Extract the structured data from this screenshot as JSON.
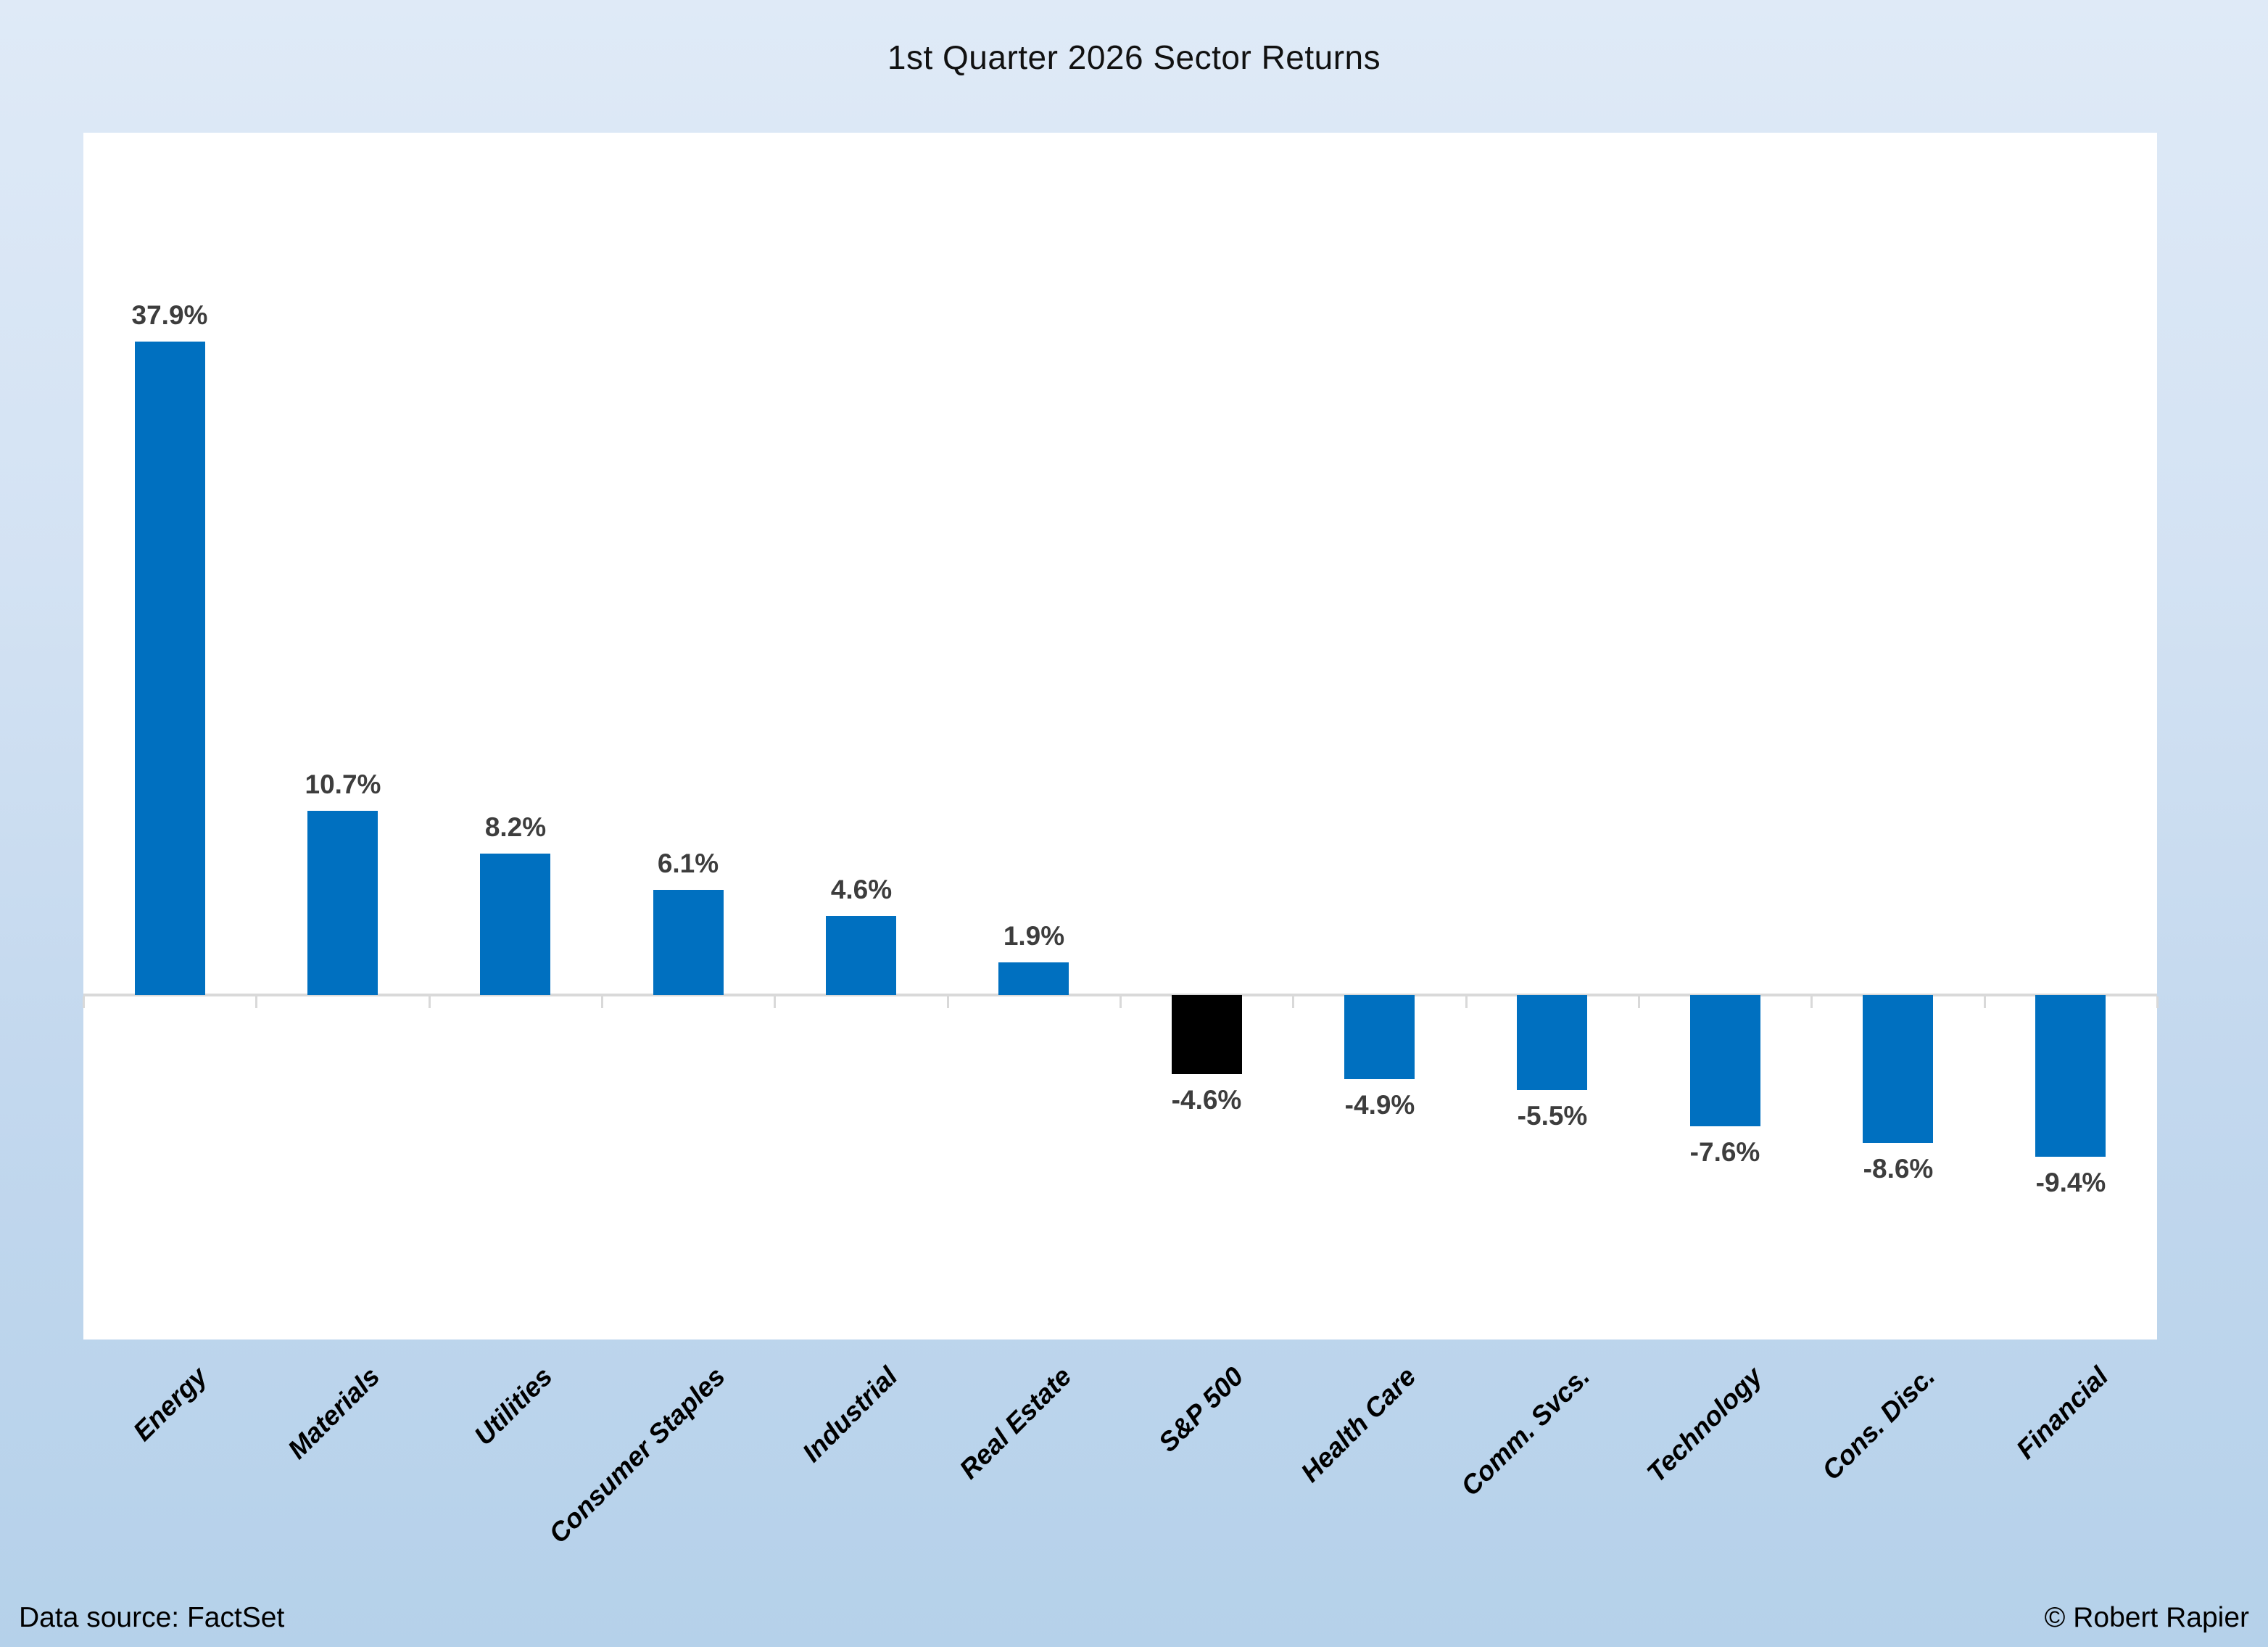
{
  "title": "1st Quarter 2026 Sector Returns",
  "footer": {
    "source": "Data source: FactSet",
    "credit": "© Robert Rapier"
  },
  "colors": {
    "bar": "#0070C0",
    "highlight_bar": "#000000",
    "axis": "#D9D9D9",
    "value_label": "#3D3D3D",
    "category_label": "#000000",
    "background_top": "#DFEAF7",
    "background_bottom": "#B5D1EA",
    "plot_background": "#FFFFFF"
  },
  "chart_data": {
    "type": "bar",
    "title": "1st Quarter 2026 Sector Returns",
    "xlabel": "",
    "ylabel": "",
    "categories": [
      "Energy",
      "Materials",
      "Utilities",
      "Consumer Staples",
      "Industrial",
      "Real Estate",
      "S&P 500",
      "Health Care",
      "Comm. Svcs.",
      "Technology",
      "Cons. Disc.",
      "Financial"
    ],
    "values": [
      37.9,
      10.7,
      8.2,
      6.1,
      4.6,
      1.9,
      -4.6,
      -4.9,
      -5.5,
      -7.6,
      -8.6,
      -9.4
    ],
    "value_labels": [
      "37.9%",
      "10.7%",
      "8.2%",
      "6.1%",
      "4.6%",
      "1.9%",
      "-4.6%",
      "-4.9%",
      "-5.5%",
      "-7.6%",
      "-8.6%",
      "-9.4%"
    ],
    "highlight_category": "S&P 500",
    "ylim": [
      -20,
      50
    ],
    "grid": false,
    "legend": false,
    "data_labels": true,
    "category_label_rotation_deg": -45
  }
}
